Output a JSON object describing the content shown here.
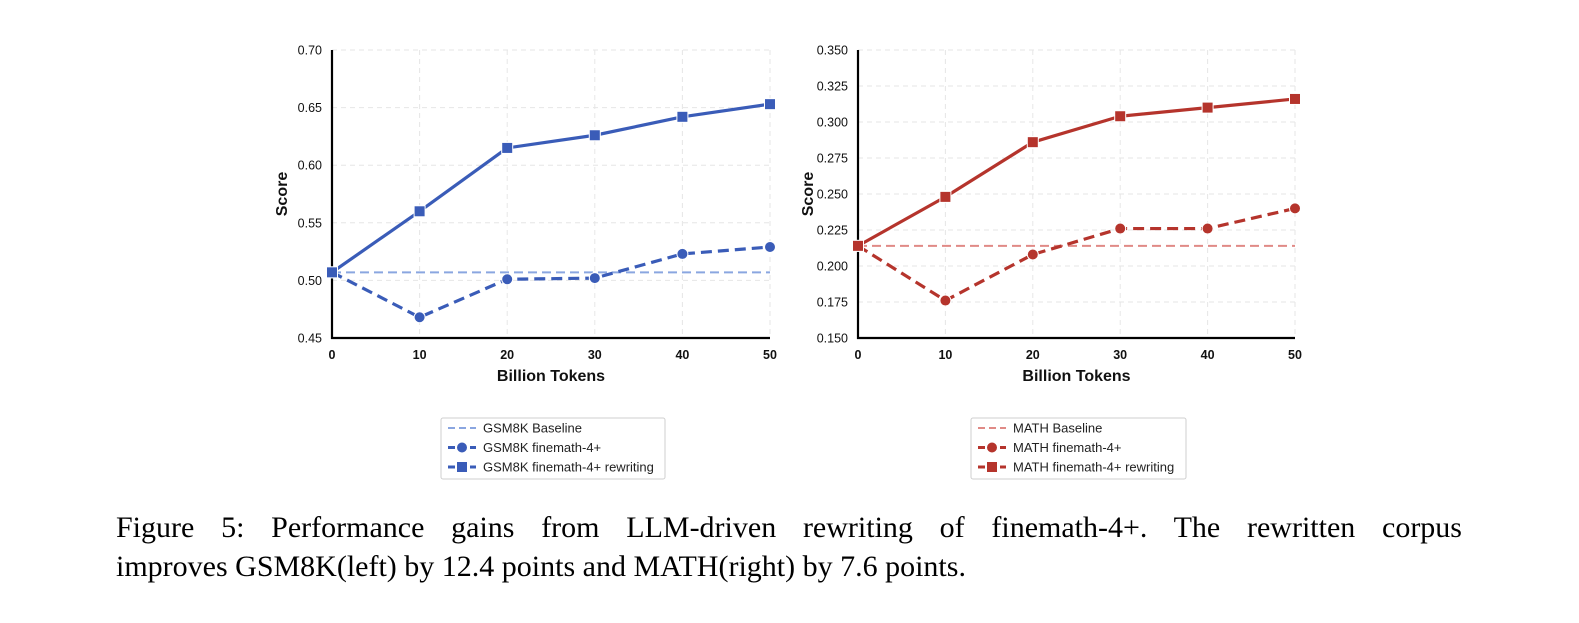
{
  "chart_data": [
    {
      "type": "line",
      "xlabel": "Billion Tokens",
      "ylabel": "Score",
      "xlim": [
        0,
        50
      ],
      "ylim": [
        0.45,
        0.7
      ],
      "xticks": [
        0,
        10,
        20,
        30,
        40,
        50
      ],
      "xtick_labels": [
        "0",
        "10",
        "20",
        "30",
        "40",
        "50"
      ],
      "yticks": [
        0.45,
        0.5,
        0.55,
        0.6,
        0.65,
        0.7
      ],
      "ytick_labels": [
        "0.45",
        "0.50",
        "0.55",
        "0.60",
        "0.65",
        "0.70"
      ],
      "grid": true,
      "legend_position": "bottom-center",
      "baseline": {
        "name": "GSM8K Baseline",
        "value": 0.507,
        "color": "#8aa6e0",
        "style": "dashed"
      },
      "series": [
        {
          "name": "GSM8K finemath-4+",
          "color": "#3a5cb8",
          "style": "dashed",
          "marker": "circle",
          "x": [
            0,
            10,
            20,
            30,
            40,
            50
          ],
          "values": [
            0.507,
            0.468,
            0.501,
            0.502,
            0.523,
            0.529
          ]
        },
        {
          "name": "GSM8K finemath-4+ rewriting",
          "color": "#3a5cb8",
          "style": "solid",
          "marker": "square",
          "x": [
            0,
            10,
            20,
            30,
            40,
            50
          ],
          "values": [
            0.507,
            0.56,
            0.615,
            0.626,
            0.642,
            0.653
          ]
        }
      ]
    },
    {
      "type": "line",
      "xlabel": "Billion Tokens",
      "ylabel": "Score",
      "xlim": [
        0,
        50
      ],
      "ylim": [
        0.15,
        0.35
      ],
      "xticks": [
        0,
        10,
        20,
        30,
        40,
        50
      ],
      "xtick_labels": [
        "0",
        "10",
        "20",
        "30",
        "40",
        "50"
      ],
      "yticks": [
        0.15,
        0.175,
        0.2,
        0.225,
        0.25,
        0.275,
        0.3,
        0.325,
        0.35
      ],
      "ytick_labels": [
        "0.150",
        "0.175",
        "0.200",
        "0.225",
        "0.250",
        "0.275",
        "0.300",
        "0.325",
        "0.350"
      ],
      "grid": true,
      "legend_position": "bottom-center",
      "baseline": {
        "name": "MATH Baseline",
        "value": 0.214,
        "color": "#e08a86",
        "style": "dashed"
      },
      "series": [
        {
          "name": "MATH finemath-4+",
          "color": "#b5342c",
          "style": "dashed",
          "marker": "circle",
          "x": [
            0,
            10,
            20,
            30,
            40,
            50
          ],
          "values": [
            0.214,
            0.176,
            0.208,
            0.226,
            0.226,
            0.24
          ]
        },
        {
          "name": "MATH finemath-4+ rewriting",
          "color": "#b5342c",
          "style": "solid",
          "marker": "square",
          "x": [
            0,
            10,
            20,
            30,
            40,
            50
          ],
          "values": [
            0.214,
            0.248,
            0.286,
            0.304,
            0.31,
            0.316
          ]
        }
      ]
    }
  ],
  "caption": {
    "line1": "Figure 5: Performance gains from LLM-driven rewriting of finemath-4+. The rewritten corpus",
    "line2": "improves GSM8K(left) by 12.4 points and MATH(right) by 7.6 points."
  }
}
